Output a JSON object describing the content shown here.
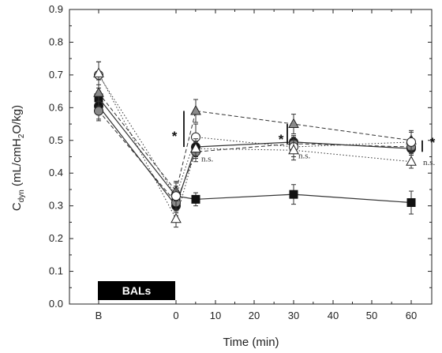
{
  "chart_data": {
    "type": "line",
    "xlabel": "Time (min)",
    "ylabel_main": "C",
    "ylabel_sub": "dyn",
    "ylabel_rest": " (mL/cmH",
    "ylabel_h2o_sub": "2",
    "ylabel_end": "O/kg)",
    "categories": [
      "B",
      "0",
      "5",
      "30",
      "60"
    ],
    "x_ticks": [
      "B",
      "0",
      "10",
      "20",
      "30",
      "40",
      "50",
      "60"
    ],
    "y_ticks": [
      "0.0",
      "0.1",
      "0.2",
      "0.3",
      "0.4",
      "0.5",
      "0.6",
      "0.7",
      "0.8",
      "0.9"
    ],
    "ylim": [
      0,
      0.9
    ],
    "bar_label": "BALs",
    "series": [
      {
        "marker": "square-black",
        "line": "solid",
        "values": [
          0.63,
          0.33,
          0.32,
          0.335,
          0.31
        ],
        "errors": [
          0.03,
          0.03,
          0.02,
          0.03,
          0.035
        ]
      },
      {
        "marker": "circle-black",
        "line": "solid",
        "values": [
          0.605,
          0.3,
          0.48,
          0.495,
          0.475
        ],
        "errors": [
          0.04,
          0.03,
          0.03,
          0.02,
          0.02
        ]
      },
      {
        "marker": "circle-gray",
        "line": "dashed",
        "values": [
          0.59,
          0.31,
          0.465,
          0.49,
          0.48
        ],
        "errors": [
          0.03,
          0.03,
          0.03,
          0.02,
          0.02
        ]
      },
      {
        "marker": "triangle-gray",
        "line": "dashed",
        "values": [
          0.645,
          0.345,
          0.59,
          0.55,
          0.5
        ],
        "errors": [
          0.04,
          0.03,
          0.035,
          0.03,
          0.03
        ]
      },
      {
        "marker": "circle-white",
        "line": "dotted",
        "values": [
          0.7,
          0.33,
          0.51,
          0.48,
          0.495
        ],
        "errors": [
          0.04,
          0.04,
          0.04,
          0.03,
          0.03
        ]
      },
      {
        "marker": "triangle-white",
        "line": "dotted",
        "values": [
          0.705,
          0.26,
          0.475,
          0.47,
          0.435
        ],
        "errors": [
          0.035,
          0.025,
          0.03,
          0.03,
          0.02
        ]
      }
    ],
    "annotations": {
      "star": "*",
      "ns": "n.s."
    },
    "colors": {
      "black": "#111111",
      "gray": "#8a8a8a",
      "white": "#ffffff"
    }
  }
}
